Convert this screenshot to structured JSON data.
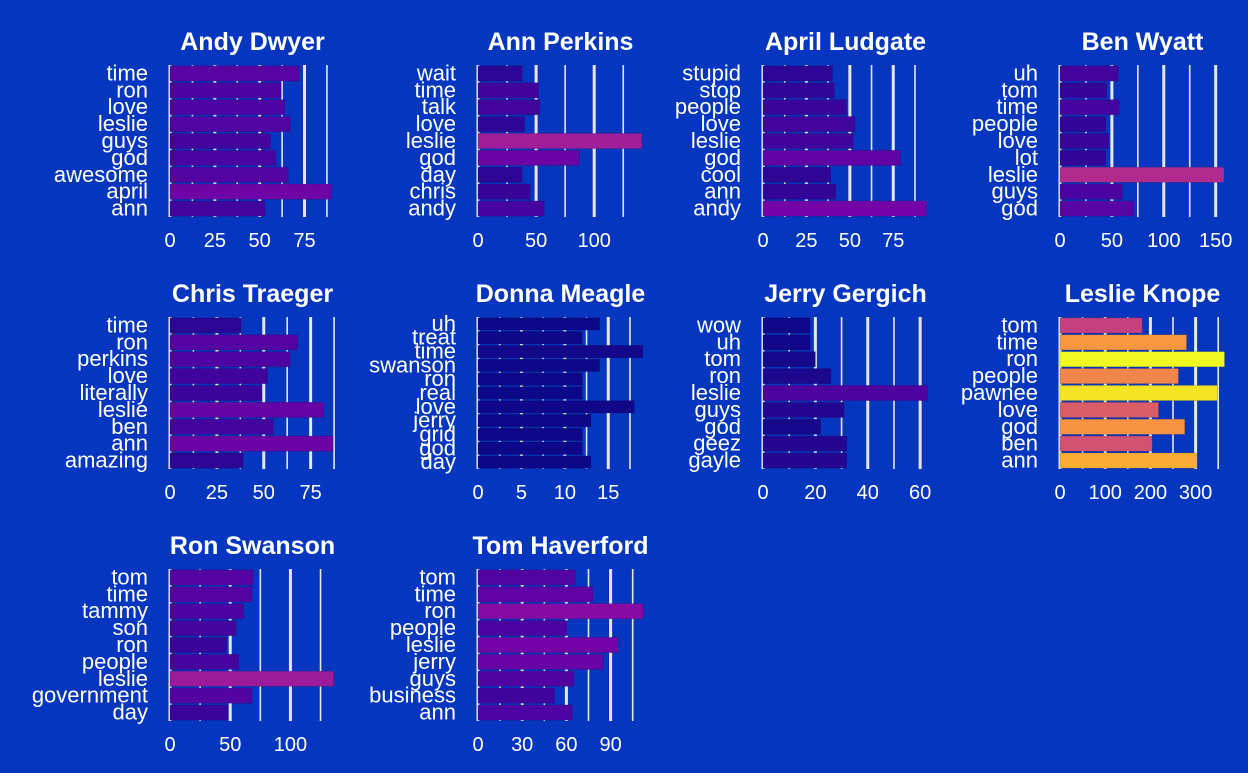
{
  "figure": {
    "background": "#0436C0",
    "gridline_color": "#E6E6EE",
    "text_color": "#FFFFFF",
    "color_scale": "plasma",
    "color_range": [
      15,
      364
    ]
  },
  "chart_data": [
    {
      "type": "bar",
      "orientation": "horizontal",
      "title": "Andy Dwyer",
      "categories": [
        "time",
        "ron",
        "love",
        "leslie",
        "guys",
        "god",
        "awesome",
        "april",
        "ann"
      ],
      "values": [
        72,
        62,
        64,
        67,
        56,
        59,
        66,
        90,
        53
      ],
      "xticks": [
        0,
        25,
        50,
        75
      ],
      "xlim": [
        0,
        92
      ],
      "grid": true,
      "grid_minor": true
    },
    {
      "type": "bar",
      "orientation": "horizontal",
      "title": "Ann Perkins",
      "categories": [
        "wait",
        "time",
        "talk",
        "love",
        "leslie",
        "god",
        "day",
        "chris",
        "andy"
      ],
      "values": [
        38,
        52,
        53,
        40,
        141,
        87,
        38,
        45,
        57
      ],
      "xticks": [
        0,
        50,
        100
      ],
      "xlim": [
        0,
        142
      ],
      "grid": true,
      "grid_minor": true
    },
    {
      "type": "bar",
      "orientation": "horizontal",
      "title": "April Ludgate",
      "categories": [
        "stupid",
        "stop",
        "people",
        "love",
        "leslie",
        "god",
        "cool",
        "ann",
        "andy"
      ],
      "values": [
        40,
        41,
        48,
        53,
        52,
        79,
        39,
        42,
        94
      ],
      "xticks": [
        0,
        25,
        50,
        75
      ],
      "xlim": [
        0,
        95
      ],
      "grid": true,
      "grid_minor": true
    },
    {
      "type": "bar",
      "orientation": "horizontal",
      "title": "Ben Wyatt",
      "categories": [
        "uh",
        "tom",
        "time",
        "people",
        "love",
        "lot",
        "leslie",
        "guys",
        "god"
      ],
      "values": [
        56,
        45,
        57,
        44,
        47,
        44,
        158,
        60,
        71
      ],
      "xticks": [
        0,
        50,
        100,
        150
      ],
      "xlim": [
        0,
        159
      ],
      "grid": true,
      "grid_minor": true
    },
    {
      "type": "bar",
      "orientation": "horizontal",
      "title": "Chris Traeger",
      "categories": [
        "time",
        "ron",
        "perkins",
        "love",
        "literally",
        "leslie",
        "ben",
        "ann",
        "amazing"
      ],
      "values": [
        38,
        68,
        64,
        52,
        49,
        82,
        55,
        87,
        39
      ],
      "xticks": [
        0,
        25,
        50,
        75
      ],
      "xlim": [
        0,
        88
      ],
      "grid": true,
      "grid_minor": true
    },
    {
      "type": "bar",
      "orientation": "horizontal",
      "title": "Donna Meagle",
      "categories": [
        "uh",
        "treat",
        "time",
        "swanson",
        "ron",
        "real",
        "love",
        "jerry",
        "grid",
        "god",
        "day"
      ],
      "values": [
        14,
        12,
        19,
        14,
        12,
        12,
        18,
        13,
        12,
        12,
        13
      ],
      "xticks": [
        0,
        5,
        10,
        15
      ],
      "xlim": [
        0,
        19
      ],
      "grid": true,
      "grid_minor": true
    },
    {
      "type": "bar",
      "orientation": "horizontal",
      "title": "Jerry Gergich",
      "categories": [
        "wow",
        "uh",
        "tom",
        "ron",
        "leslie",
        "guys",
        "god",
        "geez",
        "gayle"
      ],
      "values": [
        18,
        18,
        20,
        26,
        63,
        31,
        22,
        32,
        32
      ],
      "xticks": [
        0,
        20,
        40,
        60
      ],
      "xlim": [
        0,
        63
      ],
      "grid": true,
      "grid_minor": true
    },
    {
      "type": "bar",
      "orientation": "horizontal",
      "title": "Leslie Knope",
      "categories": [
        "tom",
        "time",
        "ron",
        "people",
        "pawnee",
        "love",
        "god",
        "ben",
        "ann"
      ],
      "values": [
        182,
        280,
        364,
        262,
        348,
        218,
        276,
        204,
        302
      ],
      "xticks": [
        0,
        100,
        200,
        300
      ],
      "xlim": [
        0,
        365
      ],
      "grid": true,
      "grid_minor": true
    },
    {
      "type": "bar",
      "orientation": "horizontal",
      "title": "Ron Swanson",
      "categories": [
        "tom",
        "time",
        "tammy",
        "son",
        "ron",
        "people",
        "leslie",
        "government",
        "day"
      ],
      "values": [
        69,
        68,
        61,
        55,
        47,
        57,
        136,
        68,
        48
      ],
      "xticks": [
        0,
        50,
        100
      ],
      "xlim": [
        0,
        137
      ],
      "grid": true,
      "grid_minor": true
    },
    {
      "type": "bar",
      "orientation": "horizontal",
      "title": "Tom Haverford",
      "categories": [
        "tom",
        "time",
        "ron",
        "people",
        "leslie",
        "jerry",
        "guys",
        "business",
        "ann"
      ],
      "values": [
        66,
        78,
        112,
        61,
        95,
        85,
        65,
        52,
        64
      ],
      "xticks": [
        0,
        30,
        60,
        90
      ],
      "xlim": [
        0,
        112
      ],
      "grid": true,
      "grid_minor": true
    }
  ]
}
